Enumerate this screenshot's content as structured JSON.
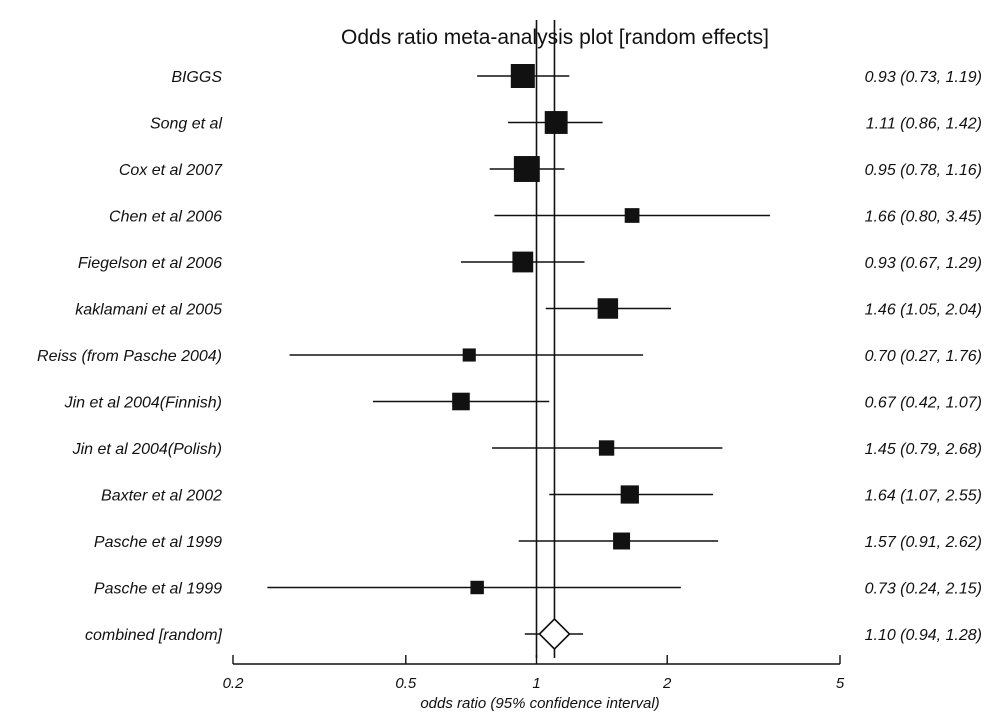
{
  "chart_data": {
    "type": "forest",
    "title": "Odds ratio meta-analysis plot [random effects]",
    "xlabel": "odds ratio (95% confidence interval)",
    "x_scale": "log",
    "xlim": [
      0.2,
      5
    ],
    "x_ticks": [
      {
        "value": 0.2,
        "label": "0.2"
      },
      {
        "value": 0.5,
        "label": "0.5"
      },
      {
        "value": 1,
        "label": "1"
      },
      {
        "value": 2,
        "label": "2"
      },
      {
        "value": 5,
        "label": "5"
      }
    ],
    "reference_line": 1,
    "pooled_line": 1.1,
    "studies": [
      {
        "name": "BIGGS",
        "or": 0.93,
        "lo": 0.73,
        "hi": 1.19,
        "text": "0.93 (0.73, 1.19)",
        "weight": 1.0
      },
      {
        "name": "Song et al",
        "or": 1.11,
        "lo": 0.86,
        "hi": 1.42,
        "text": "1.11 (0.86, 1.42)",
        "weight": 0.93
      },
      {
        "name": "Cox et al 2007",
        "or": 0.95,
        "lo": 0.78,
        "hi": 1.16,
        "text": "0.95 (0.78, 1.16)",
        "weight": 1.12
      },
      {
        "name": "Chen et al 2006",
        "or": 1.66,
        "lo": 0.8,
        "hi": 3.45,
        "text": "1.66 (0.80, 3.45)",
        "weight": 0.42
      },
      {
        "name": "Fiegelson et al 2006",
        "or": 0.93,
        "lo": 0.67,
        "hi": 1.29,
        "text": "0.93 (0.67, 1.29)",
        "weight": 0.8
      },
      {
        "name": "kaklamani et al 2005",
        "or": 1.46,
        "lo": 1.05,
        "hi": 2.04,
        "text": "1.46 (1.05, 2.04)",
        "weight": 0.78
      },
      {
        "name": "Reiss (from Pasche 2004)",
        "or": 0.7,
        "lo": 0.27,
        "hi": 1.76,
        "text": "0.70 (0.27, 1.76)",
        "weight": 0.32
      },
      {
        "name": "Jin et al 2004(Finnish)",
        "or": 0.67,
        "lo": 0.42,
        "hi": 1.07,
        "text": "0.67 (0.42, 1.07)",
        "weight": 0.6
      },
      {
        "name": "Jin et al 2004(Polish)",
        "or": 1.45,
        "lo": 0.79,
        "hi": 2.68,
        "text": "1.45 (0.79, 2.68)",
        "weight": 0.46
      },
      {
        "name": "Baxter et al 2002",
        "or": 1.64,
        "lo": 1.07,
        "hi": 2.55,
        "text": "1.64 (1.07, 2.55)",
        "weight": 0.64
      },
      {
        "name": "Pasche et al 1999",
        "or": 1.57,
        "lo": 0.91,
        "hi": 2.62,
        "text": "1.57 (0.91, 2.62)",
        "weight": 0.56
      },
      {
        "name": "Pasche et al 1999",
        "or": 0.73,
        "lo": 0.24,
        "hi": 2.15,
        "text": "0.73 (0.24, 2.15)",
        "weight": 0.34
      }
    ],
    "combined": {
      "name": "combined [random]",
      "or": 1.1,
      "lo": 0.94,
      "hi": 1.28,
      "text": "1.10 (0.94, 1.28)"
    }
  }
}
